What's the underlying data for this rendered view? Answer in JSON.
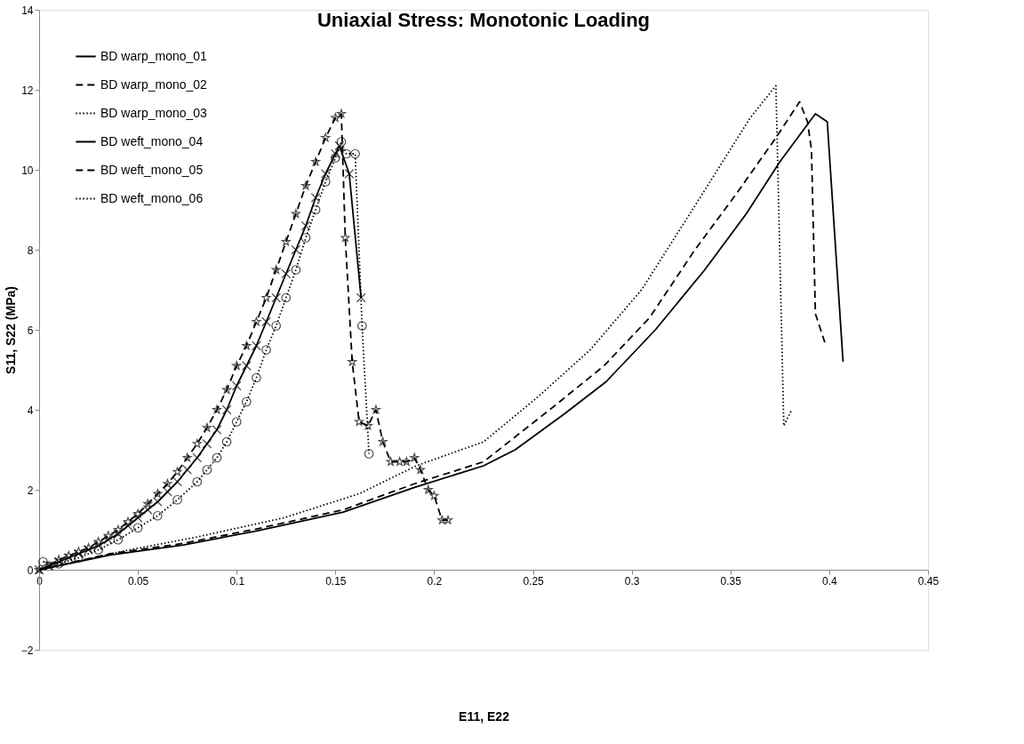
{
  "chart_data": {
    "type": "line",
    "title": "Uniaxial Stress: Monotonic Loading",
    "xlabel": "E11, E22",
    "ylabel": "S11, S22 (MPa)",
    "xlim": [
      0,
      0.45
    ],
    "ylim": [
      -2,
      14
    ],
    "xticks": [
      0,
      0.05,
      0.1,
      0.15,
      0.2,
      0.25,
      0.3,
      0.35,
      0.4,
      0.45
    ],
    "yticks": [
      -2,
      0,
      2,
      4,
      6,
      8,
      10,
      12,
      14
    ],
    "grid": false,
    "legend": "top left",
    "series": [
      {
        "name": "BD warp_mono_01",
        "color": "#000000",
        "line_style": "solid",
        "marker": "none",
        "x": [
          0,
          0.036,
          0.073,
          0.11,
          0.154,
          0.19,
          0.225,
          0.241,
          0.266,
          0.287,
          0.312,
          0.337,
          0.358,
          0.375,
          0.393,
          0.399,
          0.407
        ],
        "values": [
          0,
          0.37,
          0.62,
          0.97,
          1.44,
          2.06,
          2.6,
          3.0,
          3.9,
          4.7,
          6.0,
          7.5,
          8.9,
          10.2,
          11.4,
          11.2,
          5.2
        ]
      },
      {
        "name": "BD warp_mono_02",
        "color": "#000000",
        "line_style": "dashed",
        "marker": "none",
        "x": [
          0,
          0.036,
          0.073,
          0.11,
          0.154,
          0.19,
          0.225,
          0.261,
          0.286,
          0.309,
          0.332,
          0.353,
          0.373,
          0.385,
          0.389,
          0.391,
          0.393,
          0.398
        ],
        "values": [
          0,
          0.4,
          0.66,
          1.02,
          1.5,
          2.15,
          2.7,
          4.1,
          5.1,
          6.3,
          8.0,
          9.4,
          10.8,
          11.7,
          11.2,
          10.5,
          6.4,
          5.65
        ]
      },
      {
        "name": "BD warp_mono_03",
        "color": "#000000",
        "line_style": "dotted",
        "marker": "none",
        "x": [
          0,
          0.043,
          0.08,
          0.124,
          0.162,
          0.191,
          0.225,
          0.252,
          0.279,
          0.305,
          0.332,
          0.36,
          0.373,
          0.377,
          0.381
        ],
        "values": [
          0,
          0.47,
          0.82,
          1.3,
          1.9,
          2.6,
          3.2,
          4.3,
          5.5,
          7.0,
          9.1,
          11.3,
          12.1,
          3.6,
          4.0
        ]
      },
      {
        "name": "BD weft_mono_04",
        "color": "#000000",
        "line_style": "solid",
        "marker": "cross",
        "x": [
          0,
          0.005,
          0.01,
          0.015,
          0.02,
          0.025,
          0.03,
          0.035,
          0.04,
          0.045,
          0.05,
          0.055,
          0.06,
          0.065,
          0.07,
          0.075,
          0.08,
          0.085,
          0.09,
          0.095,
          0.1,
          0.105,
          0.11,
          0.115,
          0.12,
          0.125,
          0.13,
          0.135,
          0.14,
          0.145,
          0.15,
          0.152,
          0.157,
          0.163
        ],
        "values": [
          0,
          0.1,
          0.2,
          0.3,
          0.4,
          0.5,
          0.6,
          0.75,
          0.9,
          1.1,
          1.3,
          1.5,
          1.7,
          1.95,
          2.2,
          2.5,
          2.8,
          3.15,
          3.5,
          4.0,
          4.6,
          5.1,
          5.6,
          6.2,
          6.8,
          7.4,
          8.0,
          8.6,
          9.3,
          9.9,
          10.4,
          10.6,
          9.9,
          6.8
        ]
      },
      {
        "name": "BD weft_mono_05",
        "color": "#000000",
        "line_style": "dashed",
        "marker": "star",
        "x": [
          0,
          0.005,
          0.01,
          0.015,
          0.02,
          0.025,
          0.03,
          0.035,
          0.04,
          0.045,
          0.05,
          0.055,
          0.06,
          0.065,
          0.07,
          0.075,
          0.08,
          0.085,
          0.09,
          0.095,
          0.1,
          0.105,
          0.11,
          0.115,
          0.12,
          0.125,
          0.13,
          0.135,
          0.14,
          0.145,
          0.15,
          0.153,
          0.155,
          0.1585,
          0.162,
          0.1665,
          0.1705,
          0.174,
          0.178,
          0.1825,
          0.186,
          0.19,
          0.193,
          0.197,
          0.2,
          0.204,
          0.207
        ],
        "values": [
          0,
          0.1,
          0.25,
          0.35,
          0.45,
          0.55,
          0.7,
          0.85,
          1.0,
          1.2,
          1.4,
          1.65,
          1.9,
          2.15,
          2.45,
          2.8,
          3.15,
          3.55,
          4.0,
          4.5,
          5.1,
          5.6,
          6.2,
          6.8,
          7.5,
          8.2,
          8.9,
          9.6,
          10.2,
          10.8,
          11.3,
          11.4,
          8.3,
          5.2,
          3.7,
          3.6,
          4.0,
          3.2,
          2.7,
          2.7,
          2.7,
          2.8,
          2.5,
          2.0,
          1.85,
          1.24,
          1.24
        ]
      },
      {
        "name": "BD weft_mono_06",
        "color": "#000000",
        "line_style": "dotted",
        "marker": "circle",
        "x": [
          0.002,
          0.01,
          0.02,
          0.03,
          0.04,
          0.05,
          0.06,
          0.07,
          0.08,
          0.085,
          0.09,
          0.095,
          0.1,
          0.105,
          0.11,
          0.115,
          0.12,
          0.125,
          0.13,
          0.135,
          0.14,
          0.145,
          0.15,
          0.153,
          0.1555,
          0.16,
          0.1635,
          0.167
        ],
        "values": [
          0.2,
          0.15,
          0.3,
          0.5,
          0.75,
          1.05,
          1.35,
          1.75,
          2.2,
          2.5,
          2.8,
          3.2,
          3.7,
          4.2,
          4.8,
          5.5,
          6.1,
          6.8,
          7.5,
          8.3,
          9.0,
          9.7,
          10.3,
          10.7,
          10.4,
          10.4,
          6.1,
          2.9
        ]
      }
    ]
  }
}
